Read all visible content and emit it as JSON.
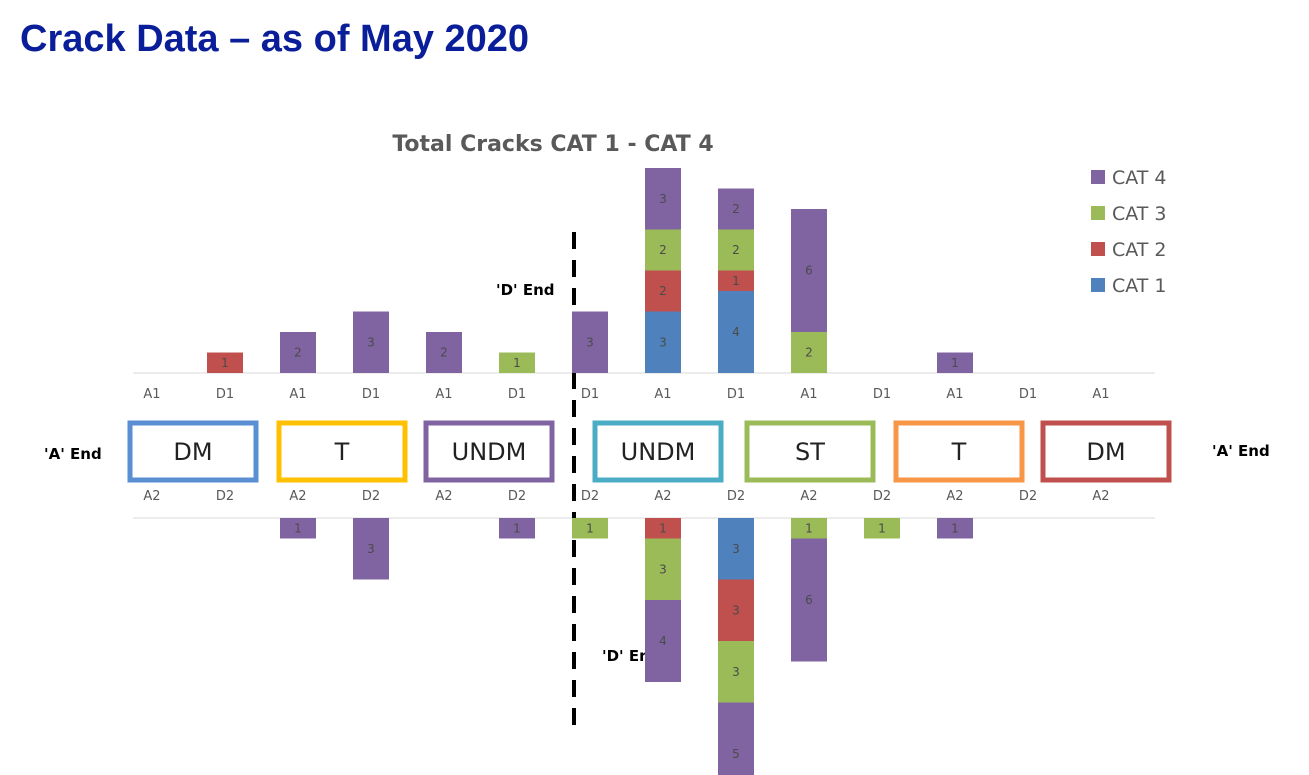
{
  "slide_title": "Crack Data – as of May 2020",
  "chart_data": {
    "type": "bar",
    "stacked": true,
    "title": "Total Cracks CAT 1 - CAT 4",
    "legend": {
      "position": "top-right",
      "entries": [
        {
          "name": "CAT 4",
          "color": "#8064a2"
        },
        {
          "name": "CAT 3",
          "color": "#9bbb59"
        },
        {
          "name": "CAT 2",
          "color": "#c0504d"
        },
        {
          "name": "CAT 1",
          "color": "#4f81bd"
        }
      ]
    },
    "series_order": [
      "CAT 1",
      "CAT 2",
      "CAT 3",
      "CAT 4"
    ],
    "top": {
      "categories": [
        "A1",
        "D1",
        "A1",
        "D1",
        "A1",
        "D1",
        "D1",
        "A1",
        "D1",
        "A1",
        "D1",
        "A1",
        "D1",
        "A1"
      ],
      "series": [
        {
          "name": "CAT 1",
          "values": [
            0,
            0,
            0,
            0,
            0,
            0,
            0,
            3,
            4,
            0,
            0,
            0,
            0,
            0
          ]
        },
        {
          "name": "CAT 2",
          "values": [
            0,
            1,
            0,
            0,
            0,
            0,
            0,
            2,
            1,
            0,
            0,
            0,
            0,
            0
          ]
        },
        {
          "name": "CAT 3",
          "values": [
            0,
            0,
            0,
            0,
            0,
            1,
            0,
            2,
            2,
            2,
            0,
            0,
            0,
            0
          ]
        },
        {
          "name": "CAT 4",
          "values": [
            0,
            0,
            2,
            3,
            2,
            0,
            3,
            3,
            2,
            6,
            0,
            1,
            0,
            0
          ]
        }
      ]
    },
    "bottom": {
      "categories": [
        "A2",
        "D2",
        "A2",
        "D2",
        "A2",
        "D2",
        "D2",
        "A2",
        "D2",
        "A2",
        "D2",
        "A2",
        "D2",
        "A2"
      ],
      "series": [
        {
          "name": "CAT 1",
          "values": [
            0,
            0,
            0,
            0,
            0,
            0,
            0,
            0,
            3,
            0,
            0,
            0,
            0,
            0
          ]
        },
        {
          "name": "CAT 2",
          "values": [
            0,
            0,
            0,
            0,
            0,
            0,
            0,
            1,
            3,
            0,
            0,
            0,
            0,
            0
          ]
        },
        {
          "name": "CAT 3",
          "values": [
            0,
            0,
            0,
            0,
            0,
            0,
            1,
            3,
            3,
            1,
            1,
            0,
            0,
            0
          ]
        },
        {
          "name": "CAT 4",
          "values": [
            0,
            0,
            1,
            3,
            0,
            1,
            0,
            4,
            5,
            6,
            0,
            1,
            0,
            0
          ]
        }
      ]
    },
    "cars": [
      {
        "label": "DM",
        "color": "#5b8fd4"
      },
      {
        "label": "T",
        "color": "#ffc000"
      },
      {
        "label": "UNDM",
        "color": "#8064a2"
      },
      {
        "label": "UNDM",
        "color": "#4bacc6"
      },
      {
        "label": "ST",
        "color": "#9bbb59"
      },
      {
        "label": "T",
        "color": "#f79646"
      },
      {
        "label": "DM",
        "color": "#c0504d"
      }
    ],
    "annotations": [
      "'D' End",
      "'D' End",
      "'A' End",
      "'A' End"
    ]
  }
}
